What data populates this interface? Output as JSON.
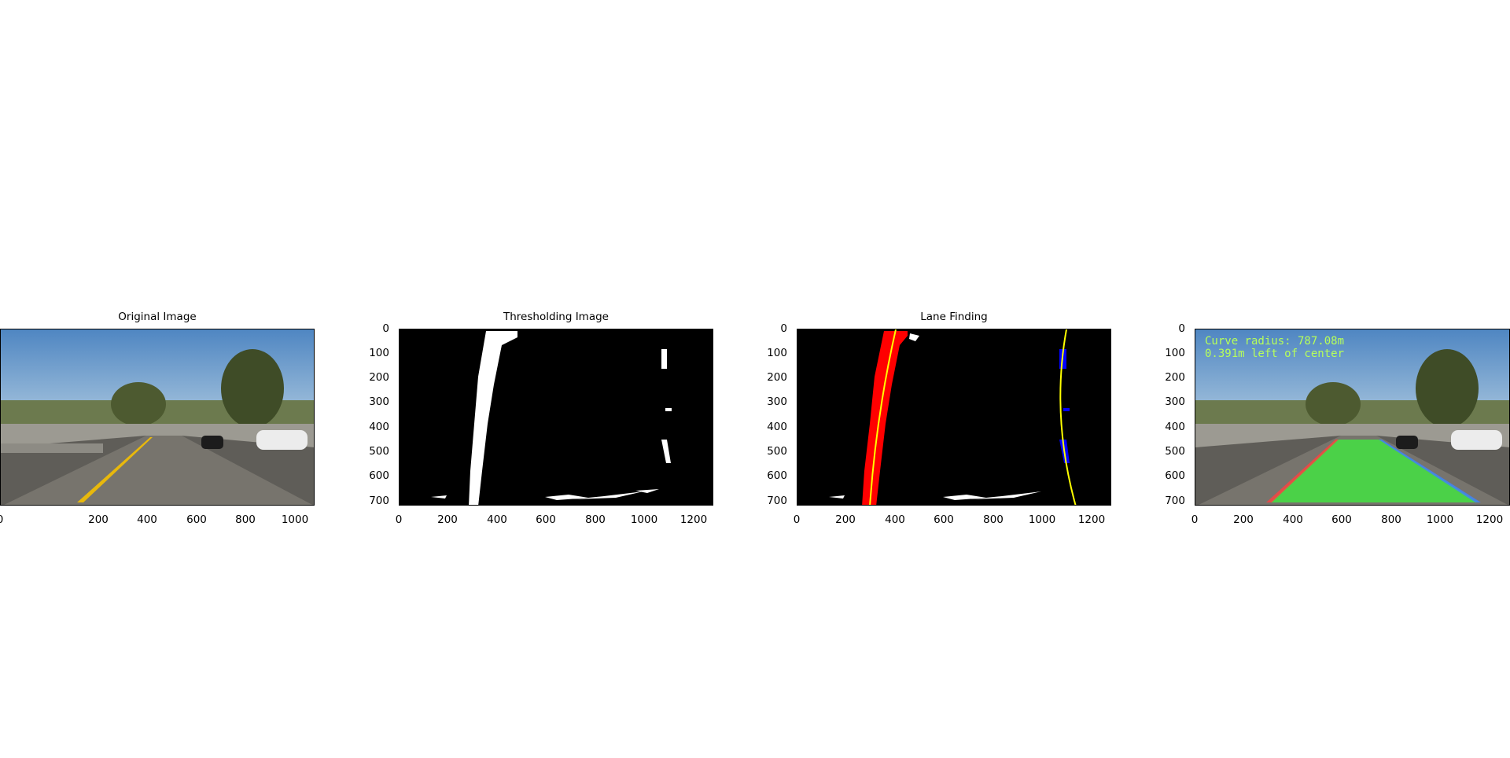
{
  "panels": [
    {
      "title": "Original Image",
      "type": "road-photo"
    },
    {
      "title": "Thresholding Image",
      "type": "binary-mask"
    },
    {
      "title": "Lane Finding",
      "type": "lane-fit"
    },
    {
      "title": "",
      "type": "result-overlay"
    }
  ],
  "x_ticks": [
    "0",
    "200",
    "400",
    "600",
    "800",
    "1000",
    "1200"
  ],
  "y_ticks": [
    "0",
    "100",
    "200",
    "300",
    "400",
    "500",
    "600",
    "700"
  ],
  "overlay": {
    "curve_radius": "Curve radius: 787.08m",
    "offset": "0.391m left of center"
  },
  "colors": {
    "sky": "#5f8fc2",
    "road": "#6f6c66",
    "lane_yellow": "#e8b80c",
    "left_lane_pixels": "#ff0000",
    "right_lane_pixels": "#0000ff",
    "fit_line": "#ffff00",
    "lane_fill": "#3cf03c",
    "overlay_text": "#b7ff5a"
  }
}
